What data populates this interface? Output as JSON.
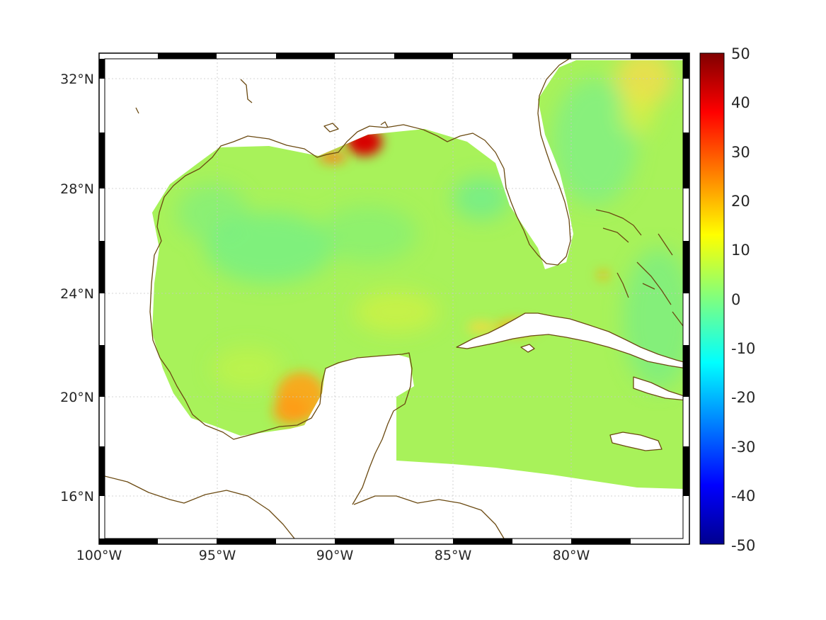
{
  "map": {
    "colorbar": {
      "min": -50,
      "max": 50,
      "ticks": [
        "50",
        "40",
        "30",
        "20",
        "10",
        "0",
        "-10",
        "-20",
        "-30",
        "-40",
        "-50"
      ],
      "colormap": "jet"
    },
    "lon_ticks": [
      "100°W",
      "95°W",
      "90°W",
      "85°W",
      "80°W"
    ],
    "lat_ticks": [
      "32°N",
      "28°N",
      "24°N",
      "20°N",
      "16°N"
    ],
    "extent": {
      "lon_min": -100,
      "lon_max": -75,
      "lat_min": 14.3,
      "lat_max": 33
    },
    "colors": {
      "coastline": "#6b4a12",
      "background_field": "#a8f25a",
      "grid": "#c8c8c8"
    },
    "field_features": [
      {
        "label": "Mississippi delta maximum",
        "lon": -88.8,
        "lat": 29.7,
        "value": 45
      },
      {
        "label": "Bay of Campeche maximum",
        "lon": -91.4,
        "lat": 19.6,
        "value": 22
      },
      {
        "label": "Cuba maximum",
        "lon": -82.3,
        "lat": 22.8,
        "value": 22
      }
    ]
  }
}
